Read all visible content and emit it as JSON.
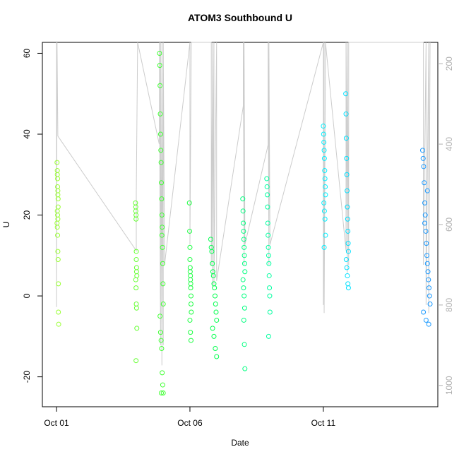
{
  "chart_data": {
    "type": "scatter",
    "title": "ATOM3 Southbound U",
    "xlabel": "Date",
    "ylabel": "U",
    "xlim": [
      0.47,
      15.29
    ],
    "xticks": [
      {
        "value": 1,
        "label": "Oct 01"
      },
      {
        "value": 6,
        "label": "Oct 06"
      },
      {
        "value": 11,
        "label": "Oct 11"
      }
    ],
    "ylim": [
      -27.4,
      62.7
    ],
    "yticks": [
      -20,
      0,
      20,
      40,
      60
    ],
    "y2lim": [
      1053,
      147
    ],
    "y2ticks": [
      200,
      400,
      600,
      800,
      1000
    ],
    "series": [
      {
        "type": "line",
        "axis": "y2",
        "color": "#cccccc",
        "x": [
          1.0,
          1.0,
          1.02,
          1.05,
          3.99,
          3.99,
          4.04,
          4.85,
          4.85,
          4.9,
          4.9,
          4.95,
          4.95,
          5.0,
          5.0,
          5.05,
          6.0,
          6.0,
          6.05,
          6.8,
          6.8,
          6.85,
          6.85,
          6.9,
          6.9,
          7.0,
          7.0,
          8.0,
          8.0,
          8.03,
          8.03,
          8.06,
          8.93,
          8.93,
          8.96,
          8.96,
          9.0,
          11.0,
          11.0,
          11.03,
          11.03,
          11.08,
          11.85,
          11.85,
          11.9,
          11.9,
          11.95,
          11.95,
          14.75,
          14.75,
          14.85,
          14.85,
          14.95,
          14.95,
          15.0
        ],
        "values": [
          147,
          805,
          147,
          380,
          665,
          520,
          147,
          400,
          147,
          900,
          147,
          950,
          147,
          900,
          147,
          700,
          147,
          650,
          147,
          147,
          700,
          147,
          750,
          147,
          750,
          147,
          740,
          305,
          147,
          700,
          147,
          650,
          402,
          147,
          700,
          147,
          650,
          147,
          800,
          147,
          820,
          147,
          665,
          147,
          720,
          147,
          700,
          147,
          147,
          700,
          147,
          800,
          147,
          820,
          147
        ]
      },
      {
        "type": "scatter",
        "color": "#99ff33",
        "x": [
          1.02,
          1.03,
          1.03,
          1.04,
          1.04,
          1.05,
          1.05,
          1.06,
          1.06,
          1.03,
          1.04,
          1.05,
          1.02,
          1.03,
          1.04,
          1.05,
          1.06,
          1.07,
          1.07,
          1.08
        ],
        "values": [
          33,
          31,
          30,
          29,
          27,
          26,
          25,
          24,
          22,
          21,
          20,
          19,
          18,
          17,
          15,
          11,
          9,
          3,
          -4,
          -7
        ]
      },
      {
        "type": "scatter",
        "color": "#66ff33",
        "x": [
          3.96,
          3.97,
          3.97,
          3.98,
          3.98,
          3.99,
          3.99,
          4.0,
          4.0,
          4.01,
          3.97,
          3.98,
          3.99,
          4.0,
          4.01,
          3.98
        ],
        "values": [
          23,
          22,
          21,
          20,
          19,
          11,
          9,
          7,
          6,
          5,
          4,
          2,
          -2,
          -3,
          -8,
          -16
        ]
      },
      {
        "type": "scatter",
        "color": "#40ff33",
        "x": [
          4.86,
          4.87,
          4.88,
          4.89,
          4.9,
          4.91,
          4.92,
          4.93,
          4.94,
          4.95,
          4.96,
          4.97,
          4.98,
          4.99,
          5.0,
          4.88,
          4.9,
          4.92,
          4.94,
          4.96,
          4.98,
          5.0,
          4.93,
          4.95
        ],
        "values": [
          60,
          57,
          52,
          45,
          40,
          36,
          33,
          28,
          24,
          20,
          17,
          12,
          8,
          3,
          -2,
          -5,
          -9,
          -11,
          -13,
          -19,
          -22,
          -24,
          -24,
          15
        ]
      },
      {
        "type": "scatter",
        "color": "#1aff40",
        "x": [
          5.98,
          5.99,
          6.0,
          6.0,
          6.01,
          6.01,
          6.02,
          6.02,
          6.03,
          6.03,
          6.04,
          6.04,
          6.05,
          6.0,
          6.02,
          6.04
        ],
        "values": [
          23,
          16,
          12,
          9,
          7,
          6,
          5,
          4,
          3,
          2,
          0,
          -2,
          -4,
          -6,
          -9,
          -11
        ]
      },
      {
        "type": "scatter",
        "color": "#00ff4d",
        "x": [
          6.78,
          6.8,
          6.82,
          6.84,
          6.86,
          6.88,
          6.9,
          6.92,
          6.94,
          6.96,
          6.98,
          7.0,
          6.85,
          6.9,
          6.95,
          7.0
        ],
        "values": [
          14,
          12,
          11,
          8,
          6,
          5,
          3,
          2,
          0,
          -2,
          -4,
          -6,
          -8,
          -10,
          -13,
          -15
        ]
      },
      {
        "type": "scatter",
        "color": "#00ff80",
        "x": [
          7.98,
          7.99,
          8.0,
          8.01,
          8.02,
          8.03,
          8.04,
          8.05,
          8.06,
          7.99,
          8.01,
          8.03,
          8.05,
          8.02,
          8.04,
          8.06
        ],
        "values": [
          24,
          21,
          18,
          16,
          14,
          12,
          10,
          8,
          6,
          4,
          2,
          0,
          -3,
          -6,
          -12,
          -18
        ]
      },
      {
        "type": "scatter",
        "color": "#00ffa0",
        "x": [
          8.88,
          8.89,
          8.9,
          8.91,
          8.92,
          8.93,
          8.94,
          8.95,
          8.96,
          8.97,
          8.98,
          8.99,
          9.0,
          8.95
        ],
        "values": [
          29,
          27,
          25,
          22,
          18,
          15,
          12,
          10,
          8,
          5,
          2,
          0,
          -4,
          -10
        ]
      },
      {
        "type": "scatter",
        "color": "#00f0ff",
        "x": [
          11.0,
          11.01,
          11.02,
          11.03,
          11.04,
          11.05,
          11.06,
          11.07,
          11.08,
          11.02,
          11.04,
          11.06,
          11.08,
          11.03
        ],
        "values": [
          42,
          40,
          38,
          36,
          34,
          31,
          29,
          27,
          25,
          23,
          21,
          19,
          15,
          12
        ]
      },
      {
        "type": "scatter",
        "color": "#00e0ff",
        "x": [
          11.84,
          11.85,
          11.86,
          11.87,
          11.88,
          11.89,
          11.9,
          11.91,
          11.92,
          11.93,
          11.94,
          11.86,
          11.88,
          11.9,
          11.92,
          11.94
        ],
        "values": [
          50,
          45,
          39,
          34,
          30,
          26,
          22,
          19,
          16,
          13,
          11,
          9,
          7,
          5,
          3,
          2
        ]
      },
      {
        "type": "scatter",
        "color": "#1a99ff",
        "x": [
          14.72,
          14.74,
          14.76,
          14.78,
          14.8,
          14.82,
          14.84,
          14.86,
          14.88,
          14.9,
          14.92,
          14.94,
          14.96,
          14.98,
          15.0,
          14.75,
          14.85,
          14.95,
          14.8,
          14.9
        ],
        "values": [
          36,
          34,
          32,
          28,
          23,
          20,
          16,
          13,
          10,
          8,
          6,
          4,
          2,
          0,
          -2,
          -4,
          -6,
          -7,
          18,
          26
        ]
      }
    ]
  }
}
